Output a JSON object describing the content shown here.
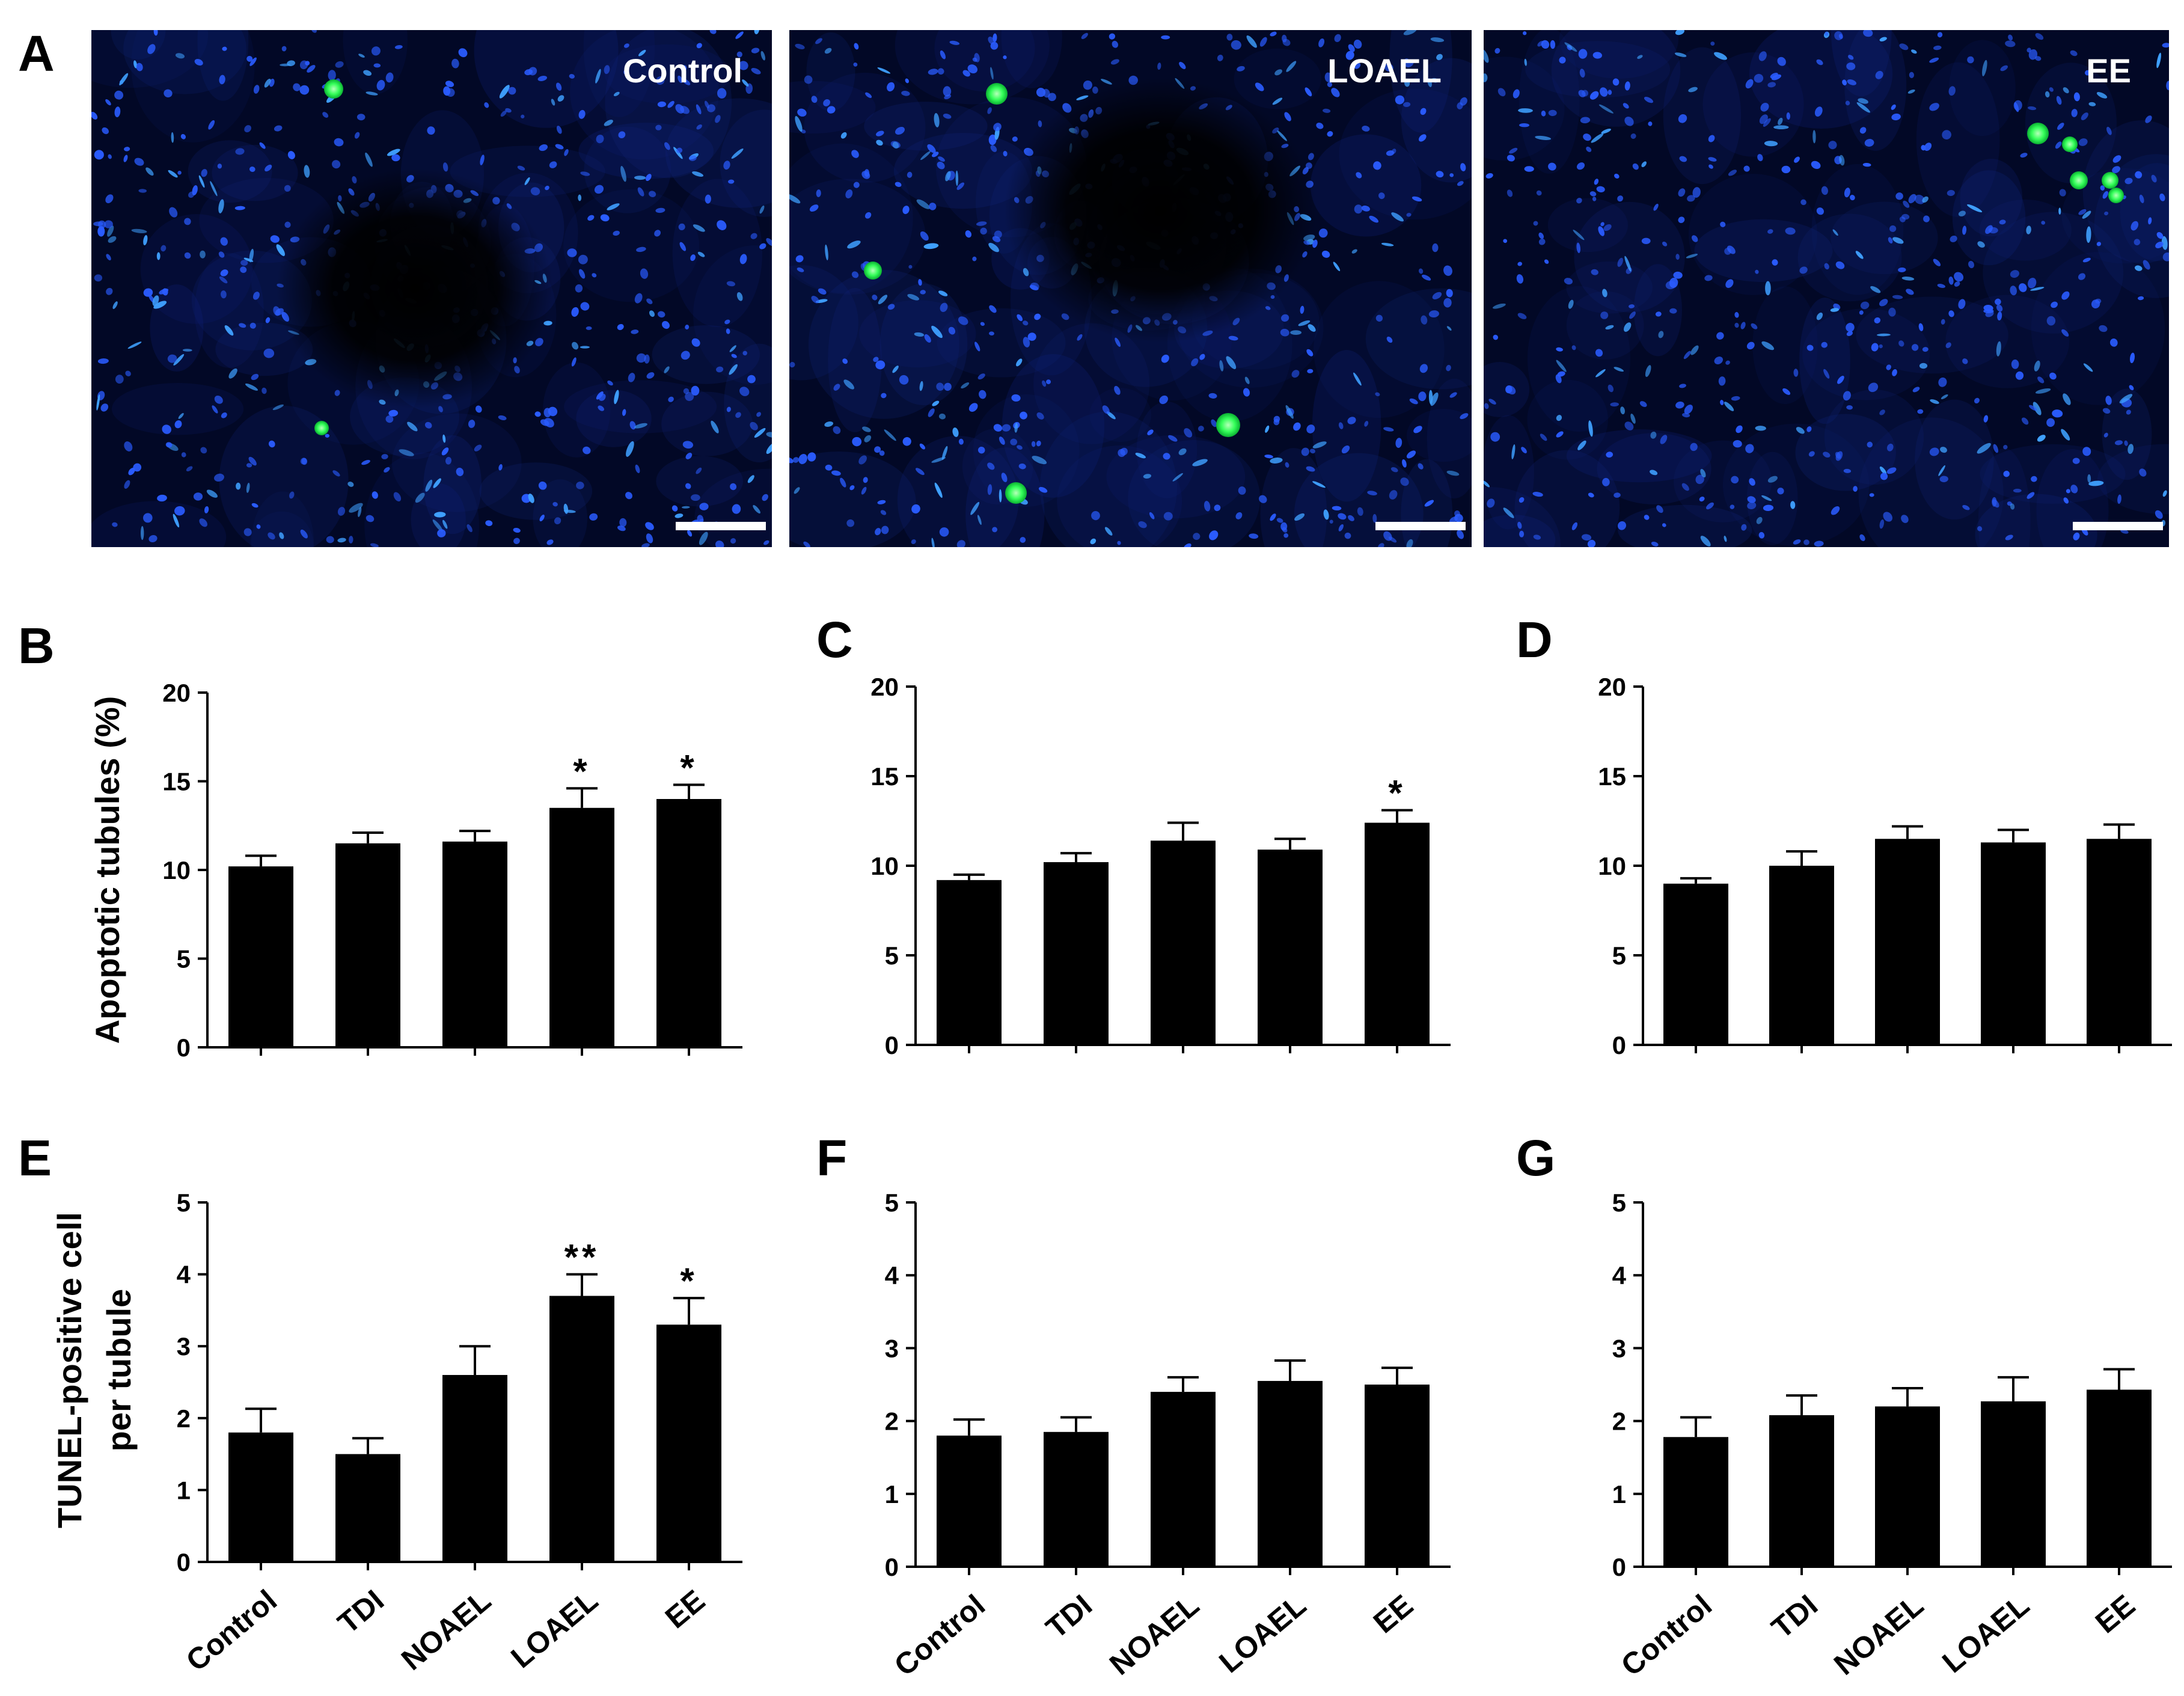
{
  "figure": {
    "panel_letters": [
      "A",
      "B",
      "C",
      "D",
      "E",
      "F",
      "G"
    ]
  },
  "micrographs": [
    {
      "label": "Control",
      "nuclei_color": "#2a5cff",
      "apoptotic_color": "#35ff5a",
      "background": "#020826"
    },
    {
      "label": "LOAEL",
      "nuclei_color": "#2a5cff",
      "apoptotic_color": "#35ff5a",
      "background": "#020826"
    },
    {
      "label": "EE",
      "nuclei_color": "#2a5cff",
      "apoptotic_color": "#35ff5a",
      "background": "#020826"
    }
  ],
  "chart_data": [
    {
      "panel": "B",
      "type": "bar",
      "categories": [
        "Control",
        "TDI",
        "NOAEL",
        "LOAEL",
        "EE"
      ],
      "values": [
        10.2,
        11.5,
        11.6,
        13.5,
        14.0
      ],
      "errors": [
        0.6,
        0.6,
        0.6,
        1.1,
        0.8
      ],
      "significance": [
        "",
        "",
        "",
        "*",
        "*"
      ],
      "ylabel": "Apoptotic tubules (%)",
      "ylim": [
        0,
        20
      ],
      "yticks": [
        0,
        5,
        10,
        15,
        20
      ],
      "show_categories": false
    },
    {
      "panel": "C",
      "type": "bar",
      "categories": [
        "Control",
        "TDI",
        "NOAEL",
        "LOAEL",
        "EE"
      ],
      "values": [
        9.2,
        10.2,
        11.4,
        10.9,
        12.4
      ],
      "errors": [
        0.3,
        0.5,
        1.0,
        0.6,
        0.7
      ],
      "significance": [
        "",
        "",
        "",
        "",
        "*"
      ],
      "ylabel": "",
      "ylim": [
        0,
        20
      ],
      "yticks": [
        0,
        5,
        10,
        15,
        20
      ],
      "show_categories": false
    },
    {
      "panel": "D",
      "type": "bar",
      "categories": [
        "Control",
        "TDI",
        "NOAEL",
        "LOAEL",
        "EE"
      ],
      "values": [
        9.0,
        10.0,
        11.5,
        11.3,
        11.5
      ],
      "errors": [
        0.3,
        0.8,
        0.7,
        0.7,
        0.8
      ],
      "significance": [
        "",
        "",
        "",
        "",
        ""
      ],
      "ylabel": "",
      "ylim": [
        0,
        20
      ],
      "yticks": [
        0,
        5,
        10,
        15,
        20
      ],
      "show_categories": false
    },
    {
      "panel": "E",
      "type": "bar",
      "categories": [
        "Control",
        "TDI",
        "NOAEL",
        "LOAEL",
        "EE"
      ],
      "values": [
        1.8,
        1.5,
        2.6,
        3.7,
        3.3
      ],
      "errors": [
        0.33,
        0.22,
        0.4,
        0.3,
        0.37
      ],
      "significance": [
        "",
        "",
        "",
        "**",
        "*"
      ],
      "ylabel_lines": [
        "TUNEL-positive cell",
        "per tubule"
      ],
      "ylim": [
        0,
        5
      ],
      "yticks": [
        0,
        1,
        2,
        3,
        4,
        5
      ],
      "show_categories": true
    },
    {
      "panel": "F",
      "type": "bar",
      "categories": [
        "Control",
        "TDI",
        "NOAEL",
        "LOAEL",
        "EE"
      ],
      "values": [
        1.8,
        1.85,
        2.4,
        2.55,
        2.5
      ],
      "errors": [
        0.22,
        0.2,
        0.2,
        0.28,
        0.23
      ],
      "significance": [
        "",
        "",
        "",
        "",
        ""
      ],
      "ylabel": "",
      "ylim": [
        0,
        5
      ],
      "yticks": [
        0,
        1,
        2,
        3,
        4,
        5
      ],
      "show_categories": true
    },
    {
      "panel": "G",
      "type": "bar",
      "categories": [
        "Control",
        "TDI",
        "NOAEL",
        "LOAEL",
        "EE"
      ],
      "values": [
        1.78,
        2.08,
        2.2,
        2.27,
        2.43
      ],
      "errors": [
        0.27,
        0.27,
        0.25,
        0.33,
        0.28
      ],
      "significance": [
        "",
        "",
        "",
        "",
        ""
      ],
      "ylabel": "",
      "ylim": [
        0,
        5
      ],
      "yticks": [
        0,
        1,
        2,
        3,
        4,
        5
      ],
      "show_categories": true
    }
  ]
}
